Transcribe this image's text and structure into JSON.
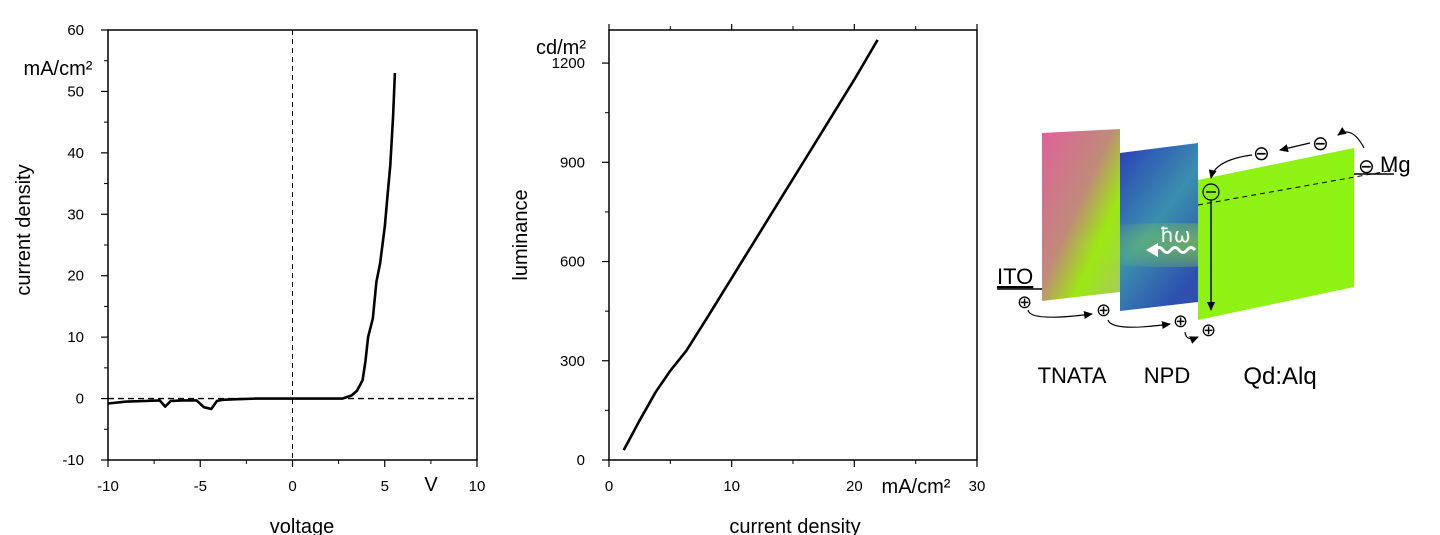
{
  "chart_data": [
    {
      "type": "line",
      "xlabel": "voltage",
      "ylabel": "current density",
      "x_unit": "V",
      "y_unit": "mA/cm²",
      "xlim": [
        -10,
        10
      ],
      "ylim": [
        -10,
        60
      ],
      "x_ticks": [
        -10,
        -5,
        0,
        5,
        10
      ],
      "y_ticks": [
        -10,
        0,
        10,
        20,
        30,
        40,
        50,
        60
      ],
      "x_tick_labels": [
        "-10",
        "-5",
        "0",
        "5",
        "10"
      ],
      "y_tick_labels": [
        "-10",
        "0",
        "10",
        "20",
        "30",
        "40",
        "50",
        "60"
      ],
      "reference_lines": {
        "x": 0,
        "y": 0,
        "style": "dashed"
      },
      "series": [
        {
          "x": [
            -10,
            -9,
            -8,
            -7.2,
            -6.9,
            -6.6,
            -6.0,
            -5.2,
            -4.8,
            -4.4,
            -4.1,
            -3.8,
            -3,
            -2,
            -1,
            0,
            1,
            2,
            2.7,
            3.2,
            3.5,
            3.8,
            3.95,
            4.1,
            4.35,
            4.55,
            4.75,
            5.0,
            5.15,
            5.3,
            5.45,
            5.55
          ],
          "y": [
            -0.8,
            -0.5,
            -0.4,
            -0.3,
            -1.3,
            -0.4,
            -0.3,
            -0.3,
            -1.4,
            -1.7,
            -0.4,
            -0.2,
            -0.1,
            0,
            0,
            0,
            0,
            0,
            0,
            0.5,
            1.3,
            3,
            6,
            10,
            13,
            19,
            22,
            28,
            33,
            38,
            46,
            53
          ]
        }
      ]
    },
    {
      "type": "line",
      "xlabel": "current density",
      "ylabel": "luminance",
      "x_unit": "mA/cm²",
      "y_unit": "cd/m²",
      "xlim": [
        0,
        30
      ],
      "ylim": [
        0,
        1300
      ],
      "x_ticks": [
        0,
        10,
        20,
        30
      ],
      "y_ticks": [
        0,
        300,
        600,
        900,
        1200
      ],
      "x_tick_labels": [
        "0",
        "10",
        "20",
        "30"
      ],
      "y_tick_labels": [
        "0",
        "300",
        "600",
        "900",
        "1200"
      ],
      "series": [
        {
          "x": [
            1.2,
            2.5,
            3.8,
            5.0,
            6.3,
            8,
            10,
            12,
            14,
            16,
            18,
            20,
            21.9
          ],
          "y": [
            30,
            120,
            205,
            270,
            330,
            430,
            550,
            670,
            790,
            910,
            1030,
            1150,
            1270
          ]
        }
      ]
    }
  ],
  "diagram": {
    "layers": [
      {
        "name": "TNATA",
        "colors": [
          "#e0609c",
          "#9ce812"
        ]
      },
      {
        "name": "NPD",
        "colors": [
          "#2a3fb8",
          "#3aa0a0"
        ]
      },
      {
        "name": "Qd:Alq",
        "colors": [
          "#8ef212"
        ]
      }
    ],
    "electrodes": {
      "anode": "ITO",
      "cathode": "Mg"
    },
    "emission_label": "ħω",
    "electron_symbol": "⊖",
    "hole_symbol": "⊕"
  }
}
